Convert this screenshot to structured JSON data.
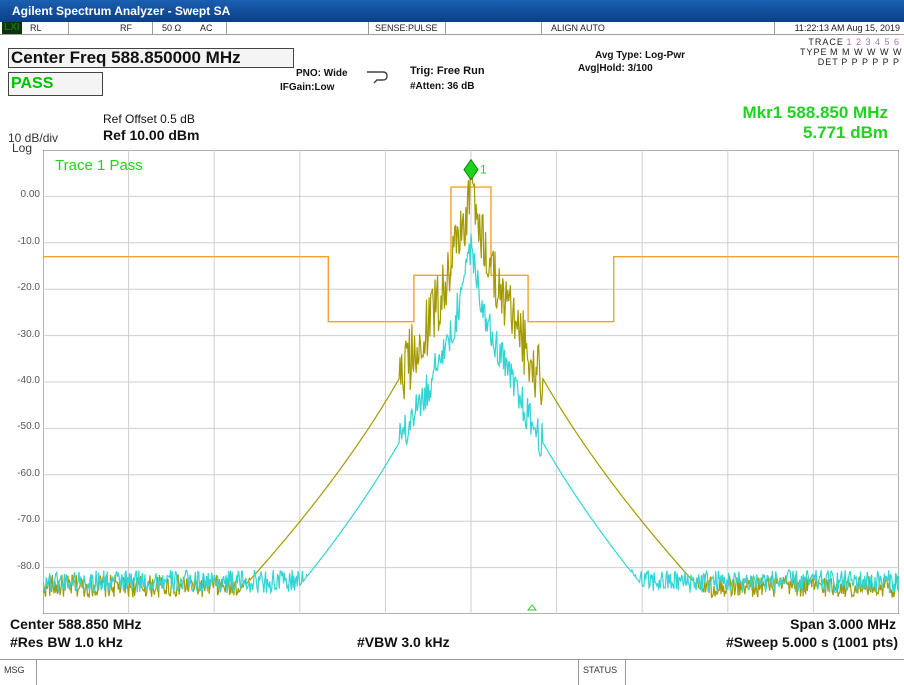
{
  "window": {
    "title": "Agilent Spectrum Analyzer - Swept SA"
  },
  "statusbar": {
    "rl": "RL",
    "rf": "RF",
    "impedance": "50 Ω",
    "coupling": "AC",
    "sense": "SENSE:PULSE",
    "align": "ALIGN AUTO",
    "datetime": "11:22:13 AM Aug 15, 2019"
  },
  "settings": {
    "center_freq_box": "Center Freq 588.850000 MHz",
    "pass_label": "PASS",
    "pno": "PNO: Wide",
    "ifgain": "IFGain:Low",
    "trig": "Trig: Free Run",
    "atten": "#Atten: 36 dB",
    "avg_type": "Avg Type: Log-Pwr",
    "avg_hold": "Avg|Hold: 3/100",
    "trace_label": "TRACE",
    "trace_nums": "1 2 3 4 5 6",
    "type_label": "TYPE",
    "type_vals": "M M W W W W",
    "det_label": "DET",
    "det_vals": "P P P P P P",
    "ref_offset": "Ref Offset 0.5 dB",
    "ref_level": "Ref 10.00 dBm",
    "scale": "10 dB/div",
    "scale_type": "Log"
  },
  "marker": {
    "freq_readout": "Mkr1 588.850 MHz",
    "amp_readout": "5.771 dBm",
    "label": "1"
  },
  "chart_data": {
    "type": "line",
    "annotation": "Trace 1 Pass",
    "y_ticks": [
      "0.00",
      "-10.0",
      "-20.0",
      "-30.0",
      "-40.0",
      "-50.0",
      "-60.0",
      "-70.0",
      "-80.0"
    ],
    "ylim": [
      -90,
      10
    ],
    "xlim": [
      587.35,
      590.35
    ],
    "grid": true,
    "limit_line": {
      "x": [
        587.35,
        588.35,
        588.35,
        588.65,
        588.65,
        588.78,
        588.78,
        588.92,
        588.92,
        589.05,
        589.05,
        589.35,
        589.35,
        590.35
      ],
      "y": [
        -13,
        -13,
        -27,
        -27,
        -17,
        -17,
        2,
        2,
        -17,
        -17,
        -27,
        -27,
        -13,
        -13
      ],
      "color": "#f3a32b"
    },
    "series": [
      {
        "name": "Trace 1",
        "color": "#a39a00",
        "center": 588.85,
        "peak_dbm": 5.771,
        "noise_floor_dbm": -84
      },
      {
        "name": "Trace 2",
        "color": "#33d4d4",
        "center": 588.85,
        "peak_dbm": -8,
        "noise_floor_dbm": -83
      }
    ],
    "marker": {
      "x": 588.85,
      "y": 5.771
    }
  },
  "footer": {
    "center": "Center 588.850 MHz",
    "res_bw": "#Res BW 1.0 kHz",
    "vbw": "#VBW 3.0 kHz",
    "span": "Span 3.000 MHz",
    "sweep": "#Sweep  5.000 s (1001 pts)"
  },
  "bottombar": {
    "msg": "MSG",
    "status": "STATUS"
  }
}
